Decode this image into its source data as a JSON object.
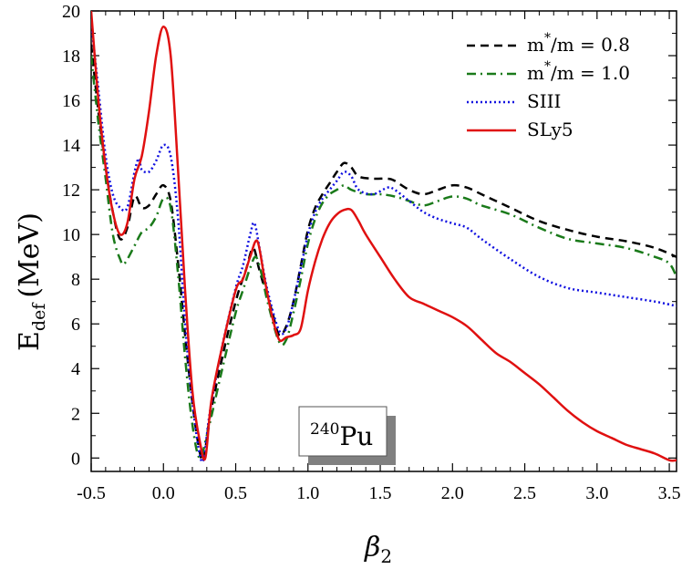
{
  "chart_data": {
    "type": "line",
    "xlabel": "β",
    "xlabel_sub": "2",
    "ylabel": "E",
    "ylabel_sub": "def",
    "ylabel_unit": "(MeV)",
    "xlim": [
      -0.5,
      3.55
    ],
    "ylim": [
      -0.6,
      20
    ],
    "x_ticks": [
      -0.5,
      0.0,
      0.5,
      1.0,
      1.5,
      2.0,
      2.5,
      3.0,
      3.5
    ],
    "x_tick_labels": [
      "-0.5",
      "0.0",
      "0.5",
      "1.0",
      "1.5",
      "2.0",
      "2.5",
      "3.0",
      "3.5"
    ],
    "y_ticks": [
      0,
      2,
      4,
      6,
      8,
      10,
      12,
      14,
      16,
      18,
      20
    ],
    "y_tick_labels": [
      "0",
      "2",
      "4",
      "6",
      "8",
      "10",
      "12",
      "14",
      "16",
      "18",
      "20"
    ],
    "grid": false,
    "legend_position": "top-right",
    "annotation": {
      "text": "Pu",
      "superscript": "240"
    },
    "series": [
      {
        "name": "m*/m = 0.8",
        "legend_main": "m",
        "legend_sup": "*",
        "legend_rest": "/m = 0.8",
        "color": "#000000",
        "style": "dashed",
        "points": [
          [
            -0.5,
            18.5
          ],
          [
            -0.45,
            15.5
          ],
          [
            -0.4,
            13
          ],
          [
            -0.35,
            11
          ],
          [
            -0.3,
            9.8
          ],
          [
            -0.25,
            10.3
          ],
          [
            -0.2,
            11.7
          ],
          [
            -0.15,
            11.2
          ],
          [
            -0.1,
            11.3
          ],
          [
            -0.05,
            11.8
          ],
          [
            0.0,
            12.2
          ],
          [
            0.05,
            11.5
          ],
          [
            0.1,
            8.8
          ],
          [
            0.15,
            5.5
          ],
          [
            0.2,
            2.5
          ],
          [
            0.25,
            0.3
          ],
          [
            0.28,
            0.0
          ],
          [
            0.32,
            1.8
          ],
          [
            0.4,
            4.3
          ],
          [
            0.5,
            7.0
          ],
          [
            0.57,
            8.4
          ],
          [
            0.62,
            9.4
          ],
          [
            0.66,
            8.5
          ],
          [
            0.7,
            7.6
          ],
          [
            0.75,
            6.6
          ],
          [
            0.8,
            5.5
          ],
          [
            0.85,
            5.9
          ],
          [
            0.9,
            7.0
          ],
          [
            0.95,
            8.6
          ],
          [
            1.0,
            10.2
          ],
          [
            1.05,
            11.2
          ],
          [
            1.1,
            11.8
          ],
          [
            1.15,
            12.3
          ],
          [
            1.2,
            12.8
          ],
          [
            1.25,
            13.2
          ],
          [
            1.3,
            13.0
          ],
          [
            1.35,
            12.6
          ],
          [
            1.45,
            12.5
          ],
          [
            1.55,
            12.5
          ],
          [
            1.6,
            12.4
          ],
          [
            1.7,
            12.0
          ],
          [
            1.8,
            11.8
          ],
          [
            1.9,
            12.0
          ],
          [
            2.0,
            12.2
          ],
          [
            2.1,
            12.1
          ],
          [
            2.2,
            11.8
          ],
          [
            2.4,
            11.2
          ],
          [
            2.6,
            10.6
          ],
          [
            2.8,
            10.2
          ],
          [
            3.0,
            9.9
          ],
          [
            3.2,
            9.7
          ],
          [
            3.4,
            9.4
          ],
          [
            3.55,
            9.0
          ]
        ]
      },
      {
        "name": "m*/m = 1.0",
        "legend_main": "m",
        "legend_sup": "*",
        "legend_rest": "/m = 1.0",
        "color": "#1a7a1a",
        "style": "dashdot",
        "points": [
          [
            -0.5,
            18.0
          ],
          [
            -0.45,
            15.0
          ],
          [
            -0.4,
            12.5
          ],
          [
            -0.35,
            10.0
          ],
          [
            -0.3,
            8.9
          ],
          [
            -0.27,
            8.7
          ],
          [
            -0.2,
            9.5
          ],
          [
            -0.15,
            10.1
          ],
          [
            -0.1,
            10.3
          ],
          [
            -0.05,
            10.8
          ],
          [
            0.0,
            11.6
          ],
          [
            0.05,
            11.2
          ],
          [
            0.1,
            8.3
          ],
          [
            0.15,
            4.5
          ],
          [
            0.2,
            1.5
          ],
          [
            0.25,
            0.0
          ],
          [
            0.3,
            1.0
          ],
          [
            0.4,
            3.8
          ],
          [
            0.5,
            6.5
          ],
          [
            0.55,
            7.5
          ],
          [
            0.6,
            8.5
          ],
          [
            0.64,
            9.0
          ],
          [
            0.68,
            8.2
          ],
          [
            0.72,
            7.0
          ],
          [
            0.8,
            5.2
          ],
          [
            0.85,
            5.3
          ],
          [
            0.9,
            6.5
          ],
          [
            0.95,
            8.0
          ],
          [
            1.0,
            9.6
          ],
          [
            1.05,
            10.7
          ],
          [
            1.1,
            11.4
          ],
          [
            1.15,
            11.8
          ],
          [
            1.2,
            12.0
          ],
          [
            1.25,
            12.2
          ],
          [
            1.3,
            12.0
          ],
          [
            1.4,
            11.8
          ],
          [
            1.5,
            11.8
          ],
          [
            1.6,
            11.7
          ],
          [
            1.7,
            11.5
          ],
          [
            1.8,
            11.3
          ],
          [
            1.9,
            11.5
          ],
          [
            2.0,
            11.7
          ],
          [
            2.1,
            11.6
          ],
          [
            2.2,
            11.3
          ],
          [
            2.4,
            10.9
          ],
          [
            2.6,
            10.3
          ],
          [
            2.8,
            9.8
          ],
          [
            3.0,
            9.6
          ],
          [
            3.2,
            9.4
          ],
          [
            3.4,
            9.0
          ],
          [
            3.5,
            8.7
          ],
          [
            3.55,
            8.1
          ]
        ]
      },
      {
        "name": "SIII",
        "legend_main": "SIII",
        "legend_sup": "",
        "legend_rest": "",
        "color": "#1010e0",
        "style": "dotted",
        "points": [
          [
            -0.5,
            19.5
          ],
          [
            -0.45,
            16.5
          ],
          [
            -0.4,
            13.5
          ],
          [
            -0.35,
            11.8
          ],
          [
            -0.3,
            11.2
          ],
          [
            -0.25,
            11.2
          ],
          [
            -0.2,
            12.8
          ],
          [
            -0.17,
            13.4
          ],
          [
            -0.15,
            12.9
          ],
          [
            -0.1,
            12.8
          ],
          [
            -0.05,
            13.3
          ],
          [
            0.0,
            14.0
          ],
          [
            0.05,
            13.5
          ],
          [
            0.1,
            10.8
          ],
          [
            0.15,
            6.0
          ],
          [
            0.2,
            2.5
          ],
          [
            0.25,
            0.2
          ],
          [
            0.28,
            0.0
          ],
          [
            0.32,
            2.0
          ],
          [
            0.4,
            4.8
          ],
          [
            0.5,
            7.6
          ],
          [
            0.55,
            8.6
          ],
          [
            0.6,
            10.0
          ],
          [
            0.63,
            10.5
          ],
          [
            0.67,
            9.2
          ],
          [
            0.72,
            7.5
          ],
          [
            0.8,
            5.7
          ],
          [
            0.85,
            5.8
          ],
          [
            0.9,
            7.0
          ],
          [
            0.95,
            8.5
          ],
          [
            1.0,
            10.0
          ],
          [
            1.05,
            11.0
          ],
          [
            1.1,
            11.6
          ],
          [
            1.15,
            12.0
          ],
          [
            1.2,
            12.4
          ],
          [
            1.25,
            12.8
          ],
          [
            1.3,
            12.6
          ],
          [
            1.35,
            12.0
          ],
          [
            1.45,
            11.8
          ],
          [
            1.55,
            12.1
          ],
          [
            1.6,
            12.0
          ],
          [
            1.7,
            11.5
          ],
          [
            1.8,
            11.0
          ],
          [
            1.9,
            10.7
          ],
          [
            2.0,
            10.5
          ],
          [
            2.1,
            10.3
          ],
          [
            2.2,
            9.8
          ],
          [
            2.4,
            8.9
          ],
          [
            2.6,
            8.1
          ],
          [
            2.8,
            7.6
          ],
          [
            3.0,
            7.4
          ],
          [
            3.2,
            7.2
          ],
          [
            3.4,
            7.0
          ],
          [
            3.55,
            6.8
          ]
        ]
      },
      {
        "name": "SLy5",
        "legend_main": "SLy5",
        "legend_sup": "",
        "legend_rest": "",
        "color": "#e01010",
        "style": "solid",
        "points": [
          [
            -0.5,
            20.0
          ],
          [
            -0.45,
            16.0
          ],
          [
            -0.4,
            13.0
          ],
          [
            -0.35,
            11.0
          ],
          [
            -0.3,
            10.0
          ],
          [
            -0.25,
            10.5
          ],
          [
            -0.2,
            12.5
          ],
          [
            -0.15,
            13.5
          ],
          [
            -0.1,
            15.5
          ],
          [
            -0.05,
            18.0
          ],
          [
            0.0,
            19.3
          ],
          [
            0.05,
            18.0
          ],
          [
            0.1,
            13.0
          ],
          [
            0.15,
            7.5
          ],
          [
            0.2,
            3.0
          ],
          [
            0.25,
            0.8
          ],
          [
            0.29,
            0.0
          ],
          [
            0.33,
            2.5
          ],
          [
            0.4,
            4.8
          ],
          [
            0.5,
            7.5
          ],
          [
            0.55,
            8.0
          ],
          [
            0.6,
            9.0
          ],
          [
            0.65,
            9.7
          ],
          [
            0.7,
            8.0
          ],
          [
            0.75,
            6.4
          ],
          [
            0.8,
            5.3
          ],
          [
            0.85,
            5.4
          ],
          [
            0.9,
            5.5
          ],
          [
            0.95,
            5.8
          ],
          [
            1.0,
            7.5
          ],
          [
            1.05,
            8.8
          ],
          [
            1.1,
            9.8
          ],
          [
            1.15,
            10.5
          ],
          [
            1.2,
            10.9
          ],
          [
            1.25,
            11.1
          ],
          [
            1.3,
            11.1
          ],
          [
            1.35,
            10.6
          ],
          [
            1.4,
            10.0
          ],
          [
            1.5,
            9.0
          ],
          [
            1.6,
            8.0
          ],
          [
            1.7,
            7.2
          ],
          [
            1.8,
            6.9
          ],
          [
            1.9,
            6.6
          ],
          [
            2.0,
            6.3
          ],
          [
            2.1,
            5.9
          ],
          [
            2.2,
            5.3
          ],
          [
            2.3,
            4.7
          ],
          [
            2.4,
            4.3
          ],
          [
            2.5,
            3.8
          ],
          [
            2.6,
            3.3
          ],
          [
            2.7,
            2.7
          ],
          [
            2.8,
            2.1
          ],
          [
            2.9,
            1.6
          ],
          [
            3.0,
            1.2
          ],
          [
            3.1,
            0.9
          ],
          [
            3.2,
            0.6
          ],
          [
            3.3,
            0.4
          ],
          [
            3.4,
            0.2
          ],
          [
            3.5,
            -0.1
          ],
          [
            3.55,
            -0.1
          ]
        ]
      }
    ]
  }
}
